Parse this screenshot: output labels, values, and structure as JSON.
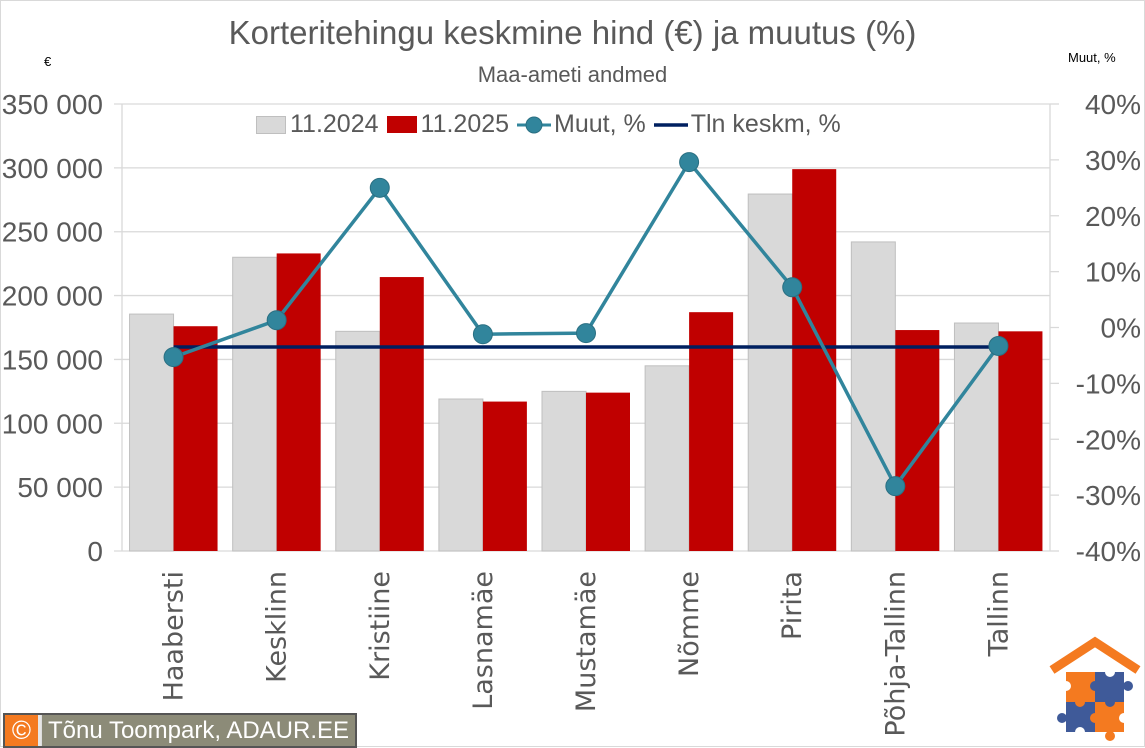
{
  "header": {
    "title": "Korteritehingu keskmine hind (€) ja muutus (%)",
    "subtitle": "Maa-ameti andmed",
    "unit_left": "€",
    "unit_right": "Muut, %"
  },
  "legend": {
    "items": [
      {
        "label": "11.2024",
        "color": "#d9d9d9",
        "type": "bar"
      },
      {
        "label": "11.2025",
        "color": "#c00000",
        "type": "bar"
      },
      {
        "label": "Muut, %",
        "color": "#31859c",
        "type": "line-marker"
      },
      {
        "label": "Tln keskm, %",
        "color": "#002060",
        "type": "line"
      }
    ]
  },
  "credit": {
    "icon": "copyright-icon",
    "symbol": "©",
    "text": "Tõnu Toompark, ADAUR.EE"
  },
  "logo": {
    "icon": "house-puzzle-logo",
    "colors": {
      "orange": "#f47a20",
      "blue": "#3f5a99"
    }
  },
  "colors": {
    "bar2024": "#d9d9d9",
    "bar2024_border": "#bfbfbf",
    "bar2025": "#c00000",
    "change_line": "#31859c",
    "avg_line": "#002060",
    "grid": "#d9d9d9",
    "text": "#595959"
  },
  "chart_data": {
    "type": "bar",
    "title": "Korteritehingu keskmine hind (€) ja muutus (%)",
    "subtitle": "Maa-ameti andmed",
    "xlabel": "",
    "ylabel": "€",
    "ylabel_right": "Muut, %",
    "ylim": [
      0,
      350000
    ],
    "ylim_right": [
      -40,
      40
    ],
    "yticks": [
      "0",
      "50 000",
      "100 000",
      "150 000",
      "200 000",
      "250 000",
      "300 000",
      "350 000"
    ],
    "yticks_right": [
      "-40%",
      "-30%",
      "-20%",
      "-10%",
      "0%",
      "10%",
      "20%",
      "30%",
      "40%"
    ],
    "grid": true,
    "legend_position": "top",
    "categories": [
      "Haabersti",
      "Kesklinn",
      "Kristiine",
      "Lasnamäe",
      "Mustamäe",
      "Nõmme",
      "Pirita",
      "Põhja-Tallinn",
      "Tallinn"
    ],
    "series": [
      {
        "name": "11.2024",
        "type": "bar",
        "axis": "left",
        "values": [
          185500,
          230000,
          172000,
          119000,
          125000,
          145000,
          279500,
          242000,
          178500
        ]
      },
      {
        "name": "11.2025",
        "type": "bar",
        "axis": "left",
        "values": [
          176000,
          233000,
          214500,
          117000,
          124000,
          187000,
          299000,
          173000,
          172000
        ]
      },
      {
        "name": "Muut, %",
        "type": "line",
        "axis": "right",
        "values": [
          -5.3,
          1.3,
          25.0,
          -1.2,
          -1.0,
          29.6,
          7.2,
          -28.4,
          -3.3
        ]
      },
      {
        "name": "Tln keskm, %",
        "type": "line",
        "axis": "right",
        "values": [
          -3.5,
          -3.5,
          -3.5,
          -3.5,
          -3.5,
          -3.5,
          -3.5,
          -3.5,
          -3.5
        ]
      }
    ]
  }
}
